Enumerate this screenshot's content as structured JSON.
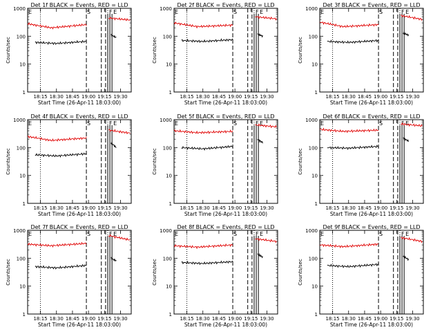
{
  "figure": {
    "background": "#ffffff",
    "colors": {
      "events": "#000000",
      "lld": "#e00000",
      "axes": "#000000"
    }
  },
  "panels_common": {
    "ylabel": "Counts/sec",
    "xlabel": "Start Time (26-Apr-11 18:03:00)",
    "y_ticks": [
      "1",
      "10",
      "100",
      "1000"
    ],
    "x_ticks": [
      "18:15",
      "18:30",
      "18:45",
      "19:00",
      "19:15",
      "19:30"
    ],
    "scale": "log"
  },
  "chart_data": [
    {
      "type": "line",
      "title": "Det 1f BLACK = Events, RED = LLD",
      "xlabel": "Start Time (26-Apr-11 18:03:00)",
      "ylabel": "Counts/sec",
      "yscale": "log",
      "ylim": [
        1,
        1000
      ],
      "xlim": [
        "18:03",
        "19:40"
      ],
      "x_ticks": [
        "18:15",
        "18:30",
        "18:45",
        "19:00",
        "19:15",
        "19:30"
      ],
      "markers": {
        "E_left": "E",
        "S": "S",
        "E_right": "E",
        "F": "F"
      },
      "series": [
        {
          "color": "#e00000",
          "segments": [
            {
              "x": [
                "18:03",
                "18:25",
                "18:58"
              ],
              "y": [
                280,
                200,
                260
              ]
            },
            {
              "x": [
                "19:19",
                "19:39"
              ],
              "y": [
                450,
                380
              ]
            }
          ]
        },
        {
          "color": "#000000",
          "segments": [
            {
              "x": [
                "18:10",
                "18:30",
                "18:58"
              ],
              "y": [
                60,
                55,
                65
              ]
            },
            {
              "x": [
                "19:21",
                "19:26"
              ],
              "y": [
                110,
                90
              ]
            }
          ]
        }
      ],
      "vlines_dotted": [
        "18:15",
        "19:18"
      ],
      "vlines_dashed": [
        "18:58",
        "19:12",
        "19:16"
      ],
      "vlines_solid": [
        "19:18",
        "19:20",
        "19:22"
      ]
    },
    {
      "type": "line",
      "title": "Det 2f BLACK = Events, RED = LLD",
      "xlabel": "Start Time (26-Apr-11 18:03:00)",
      "ylabel": "Counts/sec",
      "yscale": "log",
      "ylim": [
        1,
        1000
      ],
      "xlim": [
        "18:03",
        "19:40"
      ],
      "x_ticks": [
        "18:15",
        "18:30",
        "18:45",
        "19:00",
        "19:15",
        "19:30"
      ],
      "markers": {
        "E_left": "E",
        "S": "S",
        "E_right": "E",
        "F": "F"
      },
      "series": [
        {
          "color": "#e00000",
          "segments": [
            {
              "x": [
                "18:03",
                "18:25",
                "18:58"
              ],
              "y": [
                300,
                220,
                250
              ]
            },
            {
              "x": [
                "19:19",
                "19:39"
              ],
              "y": [
                500,
                420
              ]
            }
          ]
        },
        {
          "color": "#000000",
          "segments": [
            {
              "x": [
                "18:10",
                "18:30",
                "18:58"
              ],
              "y": [
                70,
                65,
                75
              ]
            },
            {
              "x": [
                "19:21",
                "19:26"
              ],
              "y": [
                120,
                100
              ]
            }
          ]
        }
      ],
      "vlines_dotted": [
        "18:15",
        "19:18"
      ],
      "vlines_dashed": [
        "18:58",
        "19:12",
        "19:16"
      ],
      "vlines_solid": [
        "19:18",
        "19:20",
        "19:22"
      ]
    },
    {
      "type": "line",
      "title": "Det 3f BLACK = Events, RED = LLD",
      "xlabel": "Start Time (26-Apr-11 18:03:00)",
      "ylabel": "Counts/sec",
      "yscale": "log",
      "ylim": [
        1,
        1000
      ],
      "xlim": [
        "18:03",
        "19:40"
      ],
      "x_ticks": [
        "18:15",
        "18:30",
        "18:45",
        "19:00",
        "19:15",
        "19:30"
      ],
      "markers": {
        "E_left": "E",
        "S": "S",
        "E_right": "E",
        "F": "F"
      },
      "series": [
        {
          "color": "#e00000",
          "segments": [
            {
              "x": [
                "18:03",
                "18:25",
                "18:58"
              ],
              "y": [
                320,
                220,
                260
              ]
            },
            {
              "x": [
                "19:19",
                "19:39"
              ],
              "y": [
                550,
                400
              ]
            }
          ]
        },
        {
          "color": "#000000",
          "segments": [
            {
              "x": [
                "18:10",
                "18:30",
                "18:58"
              ],
              "y": [
                65,
                60,
                70
              ]
            },
            {
              "x": [
                "19:21",
                "19:26"
              ],
              "y": [
                130,
                110
              ]
            }
          ]
        }
      ],
      "vlines_dotted": [
        "18:15",
        "19:18"
      ],
      "vlines_dashed": [
        "18:58",
        "19:12",
        "19:16"
      ],
      "vlines_solid": [
        "19:18",
        "19:20",
        "19:22"
      ]
    },
    {
      "type": "line",
      "title": "Det 4f BLACK = Events, RED = LLD",
      "xlabel": "Start Time (26-Apr-11 18:03:00)",
      "ylabel": "Counts/sec",
      "yscale": "log",
      "ylim": [
        1,
        1000
      ],
      "xlim": [
        "18:03",
        "19:40"
      ],
      "x_ticks": [
        "18:15",
        "18:30",
        "18:45",
        "19:00",
        "19:15",
        "19:30"
      ],
      "markers": {
        "E_left": "E",
        "S": "S",
        "E_right": "E",
        "F": "F"
      },
      "series": [
        {
          "color": "#e00000",
          "segments": [
            {
              "x": [
                "18:03",
                "18:25",
                "18:58"
              ],
              "y": [
                250,
                180,
                220
              ]
            },
            {
              "x": [
                "19:19",
                "19:39"
              ],
              "y": [
                420,
                330
              ]
            }
          ]
        },
        {
          "color": "#000000",
          "segments": [
            {
              "x": [
                "18:10",
                "18:30",
                "18:58"
              ],
              "y": [
                55,
                50,
                60
              ]
            },
            {
              "x": [
                "19:21",
                "19:26"
              ],
              "y": [
                150,
                100
              ]
            }
          ]
        }
      ],
      "vlines_dotted": [
        "18:15",
        "19:18"
      ],
      "vlines_dashed": [
        "18:58",
        "19:12",
        "19:16"
      ],
      "vlines_solid": [
        "19:18",
        "19:20",
        "19:22"
      ]
    },
    {
      "type": "line",
      "title": "Det 5f BLACK = Events, RED = LLD",
      "xlabel": "Start Time (26-Apr-11 18:03:00)",
      "ylabel": "Counts/sec",
      "yscale": "log",
      "ylim": [
        1,
        1000
      ],
      "xlim": [
        "18:03",
        "19:40"
      ],
      "x_ticks": [
        "18:15",
        "18:30",
        "18:45",
        "19:00",
        "19:15",
        "19:30"
      ],
      "markers": {
        "E_left": "E",
        "S": "S",
        "E_right": "E",
        "F": "F"
      },
      "series": [
        {
          "color": "#e00000",
          "segments": [
            {
              "x": [
                "18:03",
                "18:25",
                "18:58"
              ],
              "y": [
                400,
                340,
                380
              ]
            },
            {
              "x": [
                "19:19",
                "19:39"
              ],
              "y": [
                650,
                550
              ]
            }
          ]
        },
        {
          "color": "#000000",
          "segments": [
            {
              "x": [
                "18:10",
                "18:30",
                "18:58"
              ],
              "y": [
                100,
                90,
                110
              ]
            },
            {
              "x": [
                "19:21",
                "19:26"
              ],
              "y": [
                200,
                150
              ]
            }
          ]
        }
      ],
      "vlines_dotted": [
        "18:15",
        "19:18"
      ],
      "vlines_dashed": [
        "18:58",
        "19:12",
        "19:16"
      ],
      "vlines_solid": [
        "19:18",
        "19:20",
        "19:22"
      ]
    },
    {
      "type": "line",
      "title": "Det 6f BLACK = Events, RED = LLD",
      "xlabel": "Start Time (26-Apr-11 18:03:00)",
      "ylabel": "Counts/sec",
      "yscale": "log",
      "ylim": [
        1,
        1000
      ],
      "xlim": [
        "18:03",
        "19:40"
      ],
      "x_ticks": [
        "18:15",
        "18:30",
        "18:45",
        "19:00",
        "19:15",
        "19:30"
      ],
      "markers": {
        "E_left": "E",
        "S": "S",
        "E_right": "E",
        "F": "F"
      },
      "series": [
        {
          "color": "#e00000",
          "segments": [
            {
              "x": [
                "18:03",
                "18:25",
                "18:58"
              ],
              "y": [
                450,
                380,
                420
              ]
            },
            {
              "x": [
                "19:19",
                "19:39"
              ],
              "y": [
                700,
                600
              ]
            }
          ]
        },
        {
          "color": "#000000",
          "segments": [
            {
              "x": [
                "18:10",
                "18:30",
                "18:58"
              ],
              "y": [
                100,
                95,
                110
              ]
            },
            {
              "x": [
                "19:21",
                "19:26"
              ],
              "y": [
                220,
                170
              ]
            }
          ]
        }
      ],
      "vlines_dotted": [
        "18:15",
        "19:18"
      ],
      "vlines_dashed": [
        "18:58",
        "19:12",
        "19:16"
      ],
      "vlines_solid": [
        "19:18",
        "19:20",
        "19:22"
      ]
    },
    {
      "type": "line",
      "title": "Det 7f BLACK = Events, RED = LLD",
      "xlabel": "Start Time (26-Apr-11 18:03:00)",
      "ylabel": "Counts/sec",
      "yscale": "log",
      "ylim": [
        1,
        1000
      ],
      "xlim": [
        "18:03",
        "19:40"
      ],
      "x_ticks": [
        "18:15",
        "18:30",
        "18:45",
        "19:00",
        "19:15",
        "19:30"
      ],
      "markers": {
        "E_left": "E",
        "S": "S",
        "E_right": "E",
        "F": "F"
      },
      "series": [
        {
          "color": "#e00000",
          "segments": [
            {
              "x": [
                "18:03",
                "18:25",
                "18:58"
              ],
              "y": [
                320,
                280,
                340
              ]
            },
            {
              "x": [
                "19:19",
                "19:39"
              ],
              "y": [
                650,
                450
              ]
            }
          ]
        },
        {
          "color": "#000000",
          "segments": [
            {
              "x": [
                "18:10",
                "18:30",
                "18:58"
              ],
              "y": [
                50,
                45,
                55
              ]
            },
            {
              "x": [
                "19:21",
                "19:26"
              ],
              "y": [
                100,
                80
              ]
            }
          ]
        }
      ],
      "vlines_dotted": [
        "18:15",
        "19:18"
      ],
      "vlines_dashed": [
        "18:58",
        "19:12",
        "19:16"
      ],
      "vlines_solid": [
        "19:18",
        "19:20",
        "19:22"
      ]
    },
    {
      "type": "line",
      "title": "Det 8f BLACK = Events, RED = LLD",
      "xlabel": "Start Time (26-Apr-11 18:03:00)",
      "ylabel": "Counts/sec",
      "yscale": "log",
      "ylim": [
        1,
        1000
      ],
      "xlim": [
        "18:03",
        "19:40"
      ],
      "x_ticks": [
        "18:15",
        "18:30",
        "18:45",
        "19:00",
        "19:15",
        "19:30"
      ],
      "markers": {
        "E_left": "E",
        "S": "S",
        "E_right": "E",
        "F": "F"
      },
      "series": [
        {
          "color": "#e00000",
          "segments": [
            {
              "x": [
                "18:03",
                "18:25",
                "18:58"
              ],
              "y": [
                280,
                250,
                300
              ]
            },
            {
              "x": [
                "19:19",
                "19:39"
              ],
              "y": [
                500,
                400
              ]
            }
          ]
        },
        {
          "color": "#000000",
          "segments": [
            {
              "x": [
                "18:10",
                "18:30",
                "18:58"
              ],
              "y": [
                70,
                65,
                75
              ]
            },
            {
              "x": [
                "19:21",
                "19:26"
              ],
              "y": [
                140,
                110
              ]
            }
          ]
        }
      ],
      "vlines_dotted": [
        "18:15",
        "19:18"
      ],
      "vlines_dashed": [
        "18:58",
        "19:12",
        "19:16"
      ],
      "vlines_solid": [
        "19:18",
        "19:20",
        "19:22"
      ]
    },
    {
      "type": "line",
      "title": "Det 9f BLACK = Events, RED = LLD",
      "xlabel": "Start Time (26-Apr-11 18:03:00)",
      "ylabel": "Counts/sec",
      "yscale": "log",
      "ylim": [
        1,
        1000
      ],
      "xlim": [
        "18:03",
        "19:40"
      ],
      "x_ticks": [
        "18:15",
        "18:30",
        "18:45",
        "19:00",
        "19:15",
        "19:30"
      ],
      "markers": {
        "E_left": "E",
        "S": "S",
        "E_right": "E",
        "F": "F"
      },
      "series": [
        {
          "color": "#e00000",
          "segments": [
            {
              "x": [
                "18:03",
                "18:25",
                "18:58"
              ],
              "y": [
                300,
                260,
                320
              ]
            },
            {
              "x": [
                "19:19",
                "19:39"
              ],
              "y": [
                550,
                400
              ]
            }
          ]
        },
        {
          "color": "#000000",
          "segments": [
            {
              "x": [
                "18:10",
                "18:30",
                "18:58"
              ],
              "y": [
                55,
                50,
                60
              ]
            },
            {
              "x": [
                "19:21",
                "19:26"
              ],
              "y": [
                120,
                90
              ]
            }
          ]
        }
      ],
      "vlines_dotted": [
        "18:15",
        "19:18"
      ],
      "vlines_dashed": [
        "18:58",
        "19:12",
        "19:16"
      ],
      "vlines_solid": [
        "19:18",
        "19:20",
        "19:22"
      ]
    }
  ]
}
